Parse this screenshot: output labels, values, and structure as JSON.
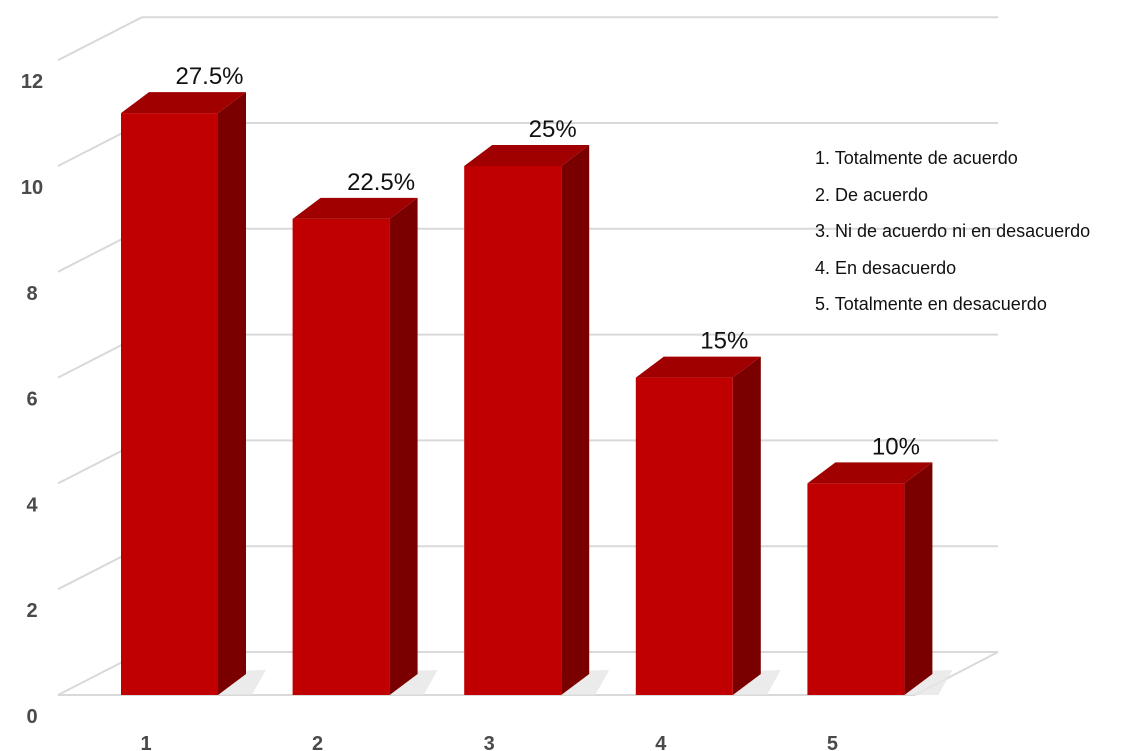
{
  "chart_data": {
    "type": "bar",
    "categories": [
      "1",
      "2",
      "3",
      "4",
      "5"
    ],
    "values": [
      11,
      9,
      10,
      6,
      4
    ],
    "data_labels": [
      "27.5%",
      "22.5%",
      "25%",
      "15%",
      "10%"
    ],
    "yticks": [
      "0",
      "2",
      "4",
      "6",
      "8",
      "10",
      "12"
    ],
    "ylim": [
      0,
      12
    ],
    "grid": true,
    "legend_position": "right",
    "legend": [
      "1. Totalmente de acuerdo",
      "2. De acuerdo",
      "3. Ni de acuerdo ni en desacuerdo",
      "4. En desacuerdo",
      "5. Totalmente en desacuerdo"
    ],
    "colors": {
      "bar_front": "#c00000",
      "bar_side": "#7a0000",
      "bar_top": "#a00000",
      "grid": "#d9d9d9"
    }
  }
}
